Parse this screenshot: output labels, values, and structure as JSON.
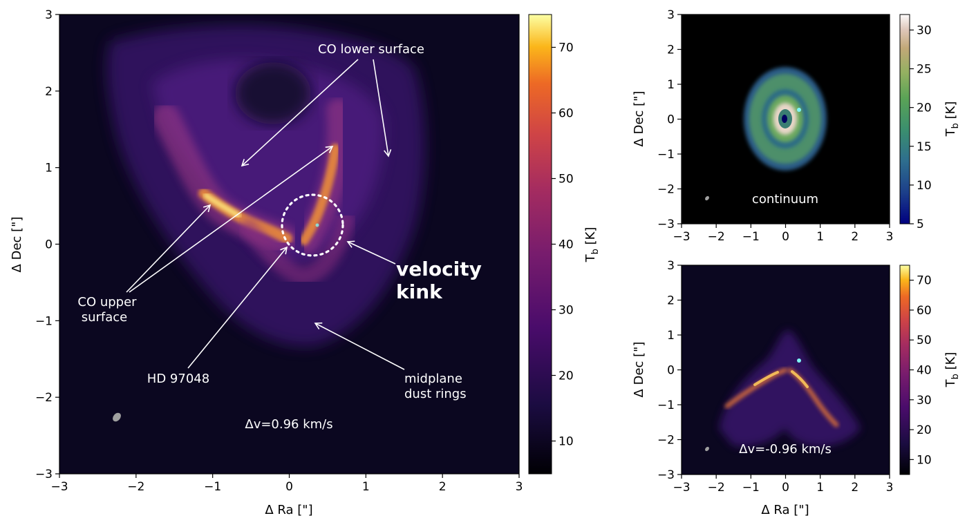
{
  "chart_data": [
    {
      "type": "heatmap",
      "panel": "main",
      "title": "",
      "xlabel": "Δ Ra [\"]",
      "ylabel": "Δ Dec [\"]",
      "xlim": [
        -3,
        3
      ],
      "ylim": [
        -3,
        3
      ],
      "xticks": [
        "−3",
        "−2",
        "−1",
        "0",
        "1",
        "2",
        "3"
      ],
      "yticks": [
        "−3",
        "−2",
        "−1",
        "0",
        "1",
        "2",
        "3"
      ],
      "colormap": "inferno-like",
      "colorbar": {
        "label": "T",
        "label_sub": "b",
        "label_unit": " [K]",
        "range": [
          5,
          75
        ],
        "ticks": [
          "10",
          "20",
          "30",
          "40",
          "50",
          "60",
          "70"
        ]
      },
      "annotations": {
        "co_lower": "CO lower surface",
        "co_upper_1": "CO upper",
        "co_upper_2": "surface",
        "star": "HD 97048",
        "midplane_1": "midplane",
        "midplane_2": "dust rings",
        "velocity_1": "velocity",
        "velocity_2": "kink",
        "dv": "Δv=0.96 km/s"
      },
      "features": {
        "kink_center": [
          0.3,
          0.25
        ],
        "kink_radius": 0.4,
        "star_position": [
          0.0,
          0.0
        ]
      }
    },
    {
      "type": "heatmap",
      "panel": "continuum",
      "xlabel": "",
      "ylabel": "Δ Dec [\"]",
      "xlim": [
        -3,
        3
      ],
      "ylim": [
        -3,
        3
      ],
      "xticks": [
        "−3",
        "−2",
        "−1",
        "0",
        "1",
        "2",
        "3"
      ],
      "yticks": [
        "−3",
        "−2",
        "−1",
        "0",
        "1",
        "2",
        "3"
      ],
      "colormap": "gist_earth-like",
      "colorbar": {
        "label": "T",
        "label_sub": "b",
        "label_unit": " [K]",
        "range": [
          5,
          32
        ],
        "ticks": [
          "5",
          "10",
          "15",
          "20",
          "25",
          "30"
        ]
      },
      "annotations": {
        "label": "continuum"
      },
      "features": {
        "planet_marker": [
          0.4,
          0.25
        ]
      }
    },
    {
      "type": "heatmap",
      "panel": "channel",
      "xlabel": "Δ Ra [\"]",
      "ylabel": "Δ Dec [\"]",
      "xlim": [
        -3,
        3
      ],
      "ylim": [
        -3,
        3
      ],
      "xticks": [
        "−3",
        "−2",
        "−1",
        "0",
        "1",
        "2",
        "3"
      ],
      "yticks": [
        "−3",
        "−2",
        "−1",
        "0",
        "1",
        "2",
        "3"
      ],
      "colormap": "inferno-like",
      "colorbar": {
        "label": "T",
        "label_sub": "b",
        "label_unit": " [K]",
        "range": [
          5,
          75
        ],
        "ticks": [
          "10",
          "20",
          "30",
          "40",
          "50",
          "60",
          "70"
        ]
      },
      "annotations": {
        "dv": "Δv=-0.96 km/s"
      },
      "features": {
        "planet_marker": [
          0.4,
          0.25
        ]
      }
    }
  ],
  "colors": {
    "background_dark": "#0b0720",
    "emission_mid": "#6a2a9a",
    "emission_bright": "#f0c050",
    "planet_marker": "#7ff5f5",
    "annotation": "#ffffff"
  }
}
